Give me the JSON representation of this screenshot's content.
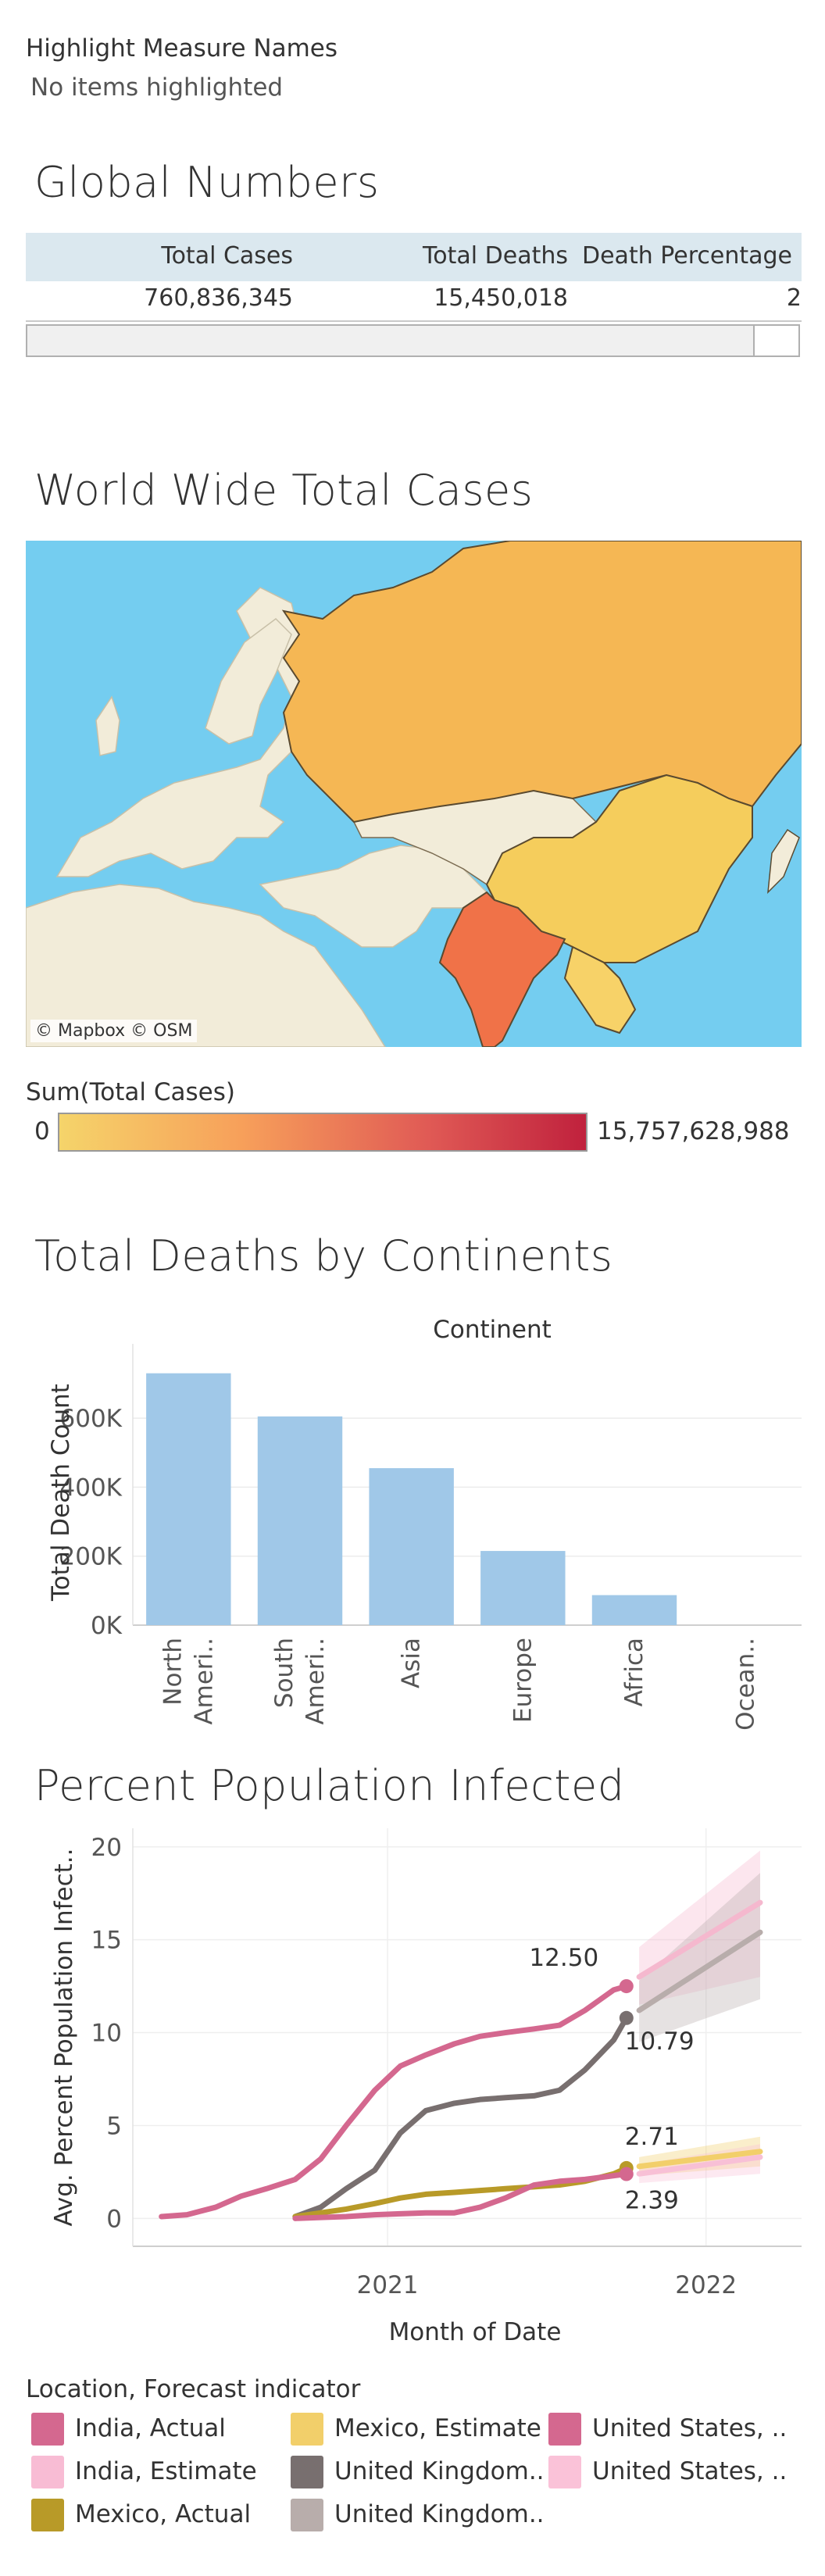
{
  "highlight": {
    "title": "Highlight Measure Names",
    "status": "No items highlighted"
  },
  "global": {
    "title": "Global Numbers",
    "headers": [
      "Total Cases",
      "Total Deaths",
      "Death Percentage"
    ],
    "values": [
      "760,836,345",
      "15,450,018",
      "2"
    ]
  },
  "map": {
    "title": "World Wide Total Cases",
    "attribution": "© Mapbox © OSM",
    "legend_title": "Sum(Total Cases)",
    "legend_min": "0",
    "legend_max": "15,757,628,988",
    "colors": {
      "water": "#74cdf0",
      "land": "#f2ecd9",
      "russia": "#f5b754",
      "china": "#f5cd5c",
      "india": "#f07248",
      "sea_asia": "#f7d268",
      "grad_start": "#f5d46a",
      "grad_mid": "#f79f5a",
      "grad_end": "#c0213d"
    }
  },
  "chart_data": [
    {
      "type": "bar",
      "title": "Total Deaths by Continents",
      "legend_header": "Continent",
      "categories": [
        "North America",
        "South America",
        "Asia",
        "Europe",
        "Africa",
        "Oceania"
      ],
      "category_labels": [
        [
          "North",
          "Ameri.."
        ],
        [
          "South",
          "Ameri.."
        ],
        [
          "Asia"
        ],
        [
          "Europe"
        ],
        [
          "Africa"
        ],
        [
          "Ocean.."
        ]
      ],
      "values": [
        730000,
        605000,
        455000,
        215000,
        87000,
        0
      ],
      "ylabel": "Total Death Count",
      "ylim": [
        0,
        770000
      ],
      "yticks": [
        0,
        200000,
        400000,
        600000
      ],
      "ytick_labels": [
        "0K",
        "200K",
        "400K",
        "600K"
      ],
      "bar_color": "#a0c8e8"
    },
    {
      "type": "line",
      "title": "Percent Population Infected",
      "xlabel": "Month of Date",
      "ylabel": "Avg. Percent Population Infect..",
      "xlim": [
        2020.2,
        2022.3
      ],
      "ylim": [
        -1.5,
        21
      ],
      "yticks": [
        0,
        5,
        10,
        15,
        20
      ],
      "xticks": [
        2021,
        2022
      ],
      "xtick_labels": [
        "2021",
        "2022"
      ],
      "series": [
        {
          "name": "India, Actual",
          "color": "#d4688f",
          "x": [
            2020.29,
            2020.37,
            2020.46,
            2020.54,
            2020.62,
            2020.71,
            2020.79,
            2020.87,
            2020.96,
            2021.04,
            2021.12,
            2021.21,
            2021.29,
            2021.37,
            2021.46,
            2021.54,
            2021.62,
            2021.71,
            2021.75
          ],
          "y": [
            0.1,
            0.2,
            0.6,
            1.2,
            1.6,
            2.1,
            3.2,
            5.0,
            6.9,
            8.2,
            8.8,
            9.4,
            9.8,
            10.0,
            10.2,
            10.4,
            11.2,
            12.3,
            12.5
          ]
        },
        {
          "name": "United Kingdom, Actual",
          "color": "#786f6f",
          "x": [
            2020.71,
            2020.79,
            2020.87,
            2020.96,
            2021.04,
            2021.12,
            2021.21,
            2021.29,
            2021.37,
            2021.46,
            2021.54,
            2021.62,
            2021.71,
            2021.75
          ],
          "y": [
            0.1,
            0.6,
            1.6,
            2.6,
            4.6,
            5.8,
            6.2,
            6.4,
            6.5,
            6.6,
            6.9,
            8.0,
            9.6,
            10.79
          ]
        },
        {
          "name": "Mexico, Actual",
          "color": "#b89a28",
          "x": [
            2020.71,
            2020.79,
            2020.87,
            2020.96,
            2021.04,
            2021.12,
            2021.21,
            2021.29,
            2021.37,
            2021.46,
            2021.54,
            2021.62,
            2021.71,
            2021.75
          ],
          "y": [
            0.1,
            0.3,
            0.5,
            0.8,
            1.1,
            1.3,
            1.4,
            1.5,
            1.6,
            1.7,
            1.8,
            2.0,
            2.4,
            2.71
          ]
        },
        {
          "name": "United States, Actual",
          "color": "#d4688f",
          "x": [
            2020.71,
            2020.79,
            2020.87,
            2020.96,
            2021.04,
            2021.12,
            2021.21,
            2021.29,
            2021.37,
            2021.46,
            2021.54,
            2021.62,
            2021.71,
            2021.75
          ],
          "y": [
            0.0,
            0.05,
            0.1,
            0.2,
            0.25,
            0.3,
            0.3,
            0.6,
            1.1,
            1.8,
            2.0,
            2.1,
            2.3,
            2.39
          ]
        },
        {
          "name": "India, Estimate",
          "color": "#f5b8ce",
          "band": true,
          "x": [
            2021.79,
            2022.17
          ],
          "y": [
            13.0,
            17.0
          ],
          "lo": [
            11.5,
            13.0
          ],
          "hi": [
            14.6,
            19.8
          ]
        },
        {
          "name": "United Kingdom, Estimate",
          "color": "#b8adab",
          "band": true,
          "x": [
            2021.79,
            2022.17
          ],
          "y": [
            11.2,
            15.4
          ],
          "lo": [
            9.5,
            11.8
          ],
          "hi": [
            12.8,
            18.6
          ]
        },
        {
          "name": "Mexico, Estimate",
          "color": "#f2cf6a",
          "band": true,
          "x": [
            2021.79,
            2022.17
          ],
          "y": [
            2.8,
            3.6
          ],
          "lo": [
            2.3,
            2.8
          ],
          "hi": [
            3.3,
            4.4
          ]
        },
        {
          "name": "United States, Estimate",
          "color": "#f8c0d6",
          "band": true,
          "x": [
            2021.79,
            2022.17
          ],
          "y": [
            2.4,
            3.3
          ],
          "lo": [
            1.9,
            2.4
          ],
          "hi": [
            2.9,
            4.0
          ]
        }
      ],
      "labels": [
        "12.50",
        "10.79",
        "2.71",
        "2.39"
      ]
    }
  ],
  "legend": {
    "title": "Location, Forecast indicator",
    "items": [
      {
        "label": "India, Actual",
        "color": "#d4688f"
      },
      {
        "label": "Mexico, Estimate",
        "color": "#f2cf6a"
      },
      {
        "label": "United States, ..",
        "color": "#d4688f"
      },
      {
        "label": "India, Estimate",
        "color": "#f8bcd4"
      },
      {
        "label": "United Kingdom..",
        "color": "#786f6f"
      },
      {
        "label": "United States, ..",
        "color": "#fac2d8"
      },
      {
        "label": "Mexico, Actual",
        "color": "#b89a28"
      },
      {
        "label": "United Kingdom..",
        "color": "#b8adab"
      }
    ]
  }
}
